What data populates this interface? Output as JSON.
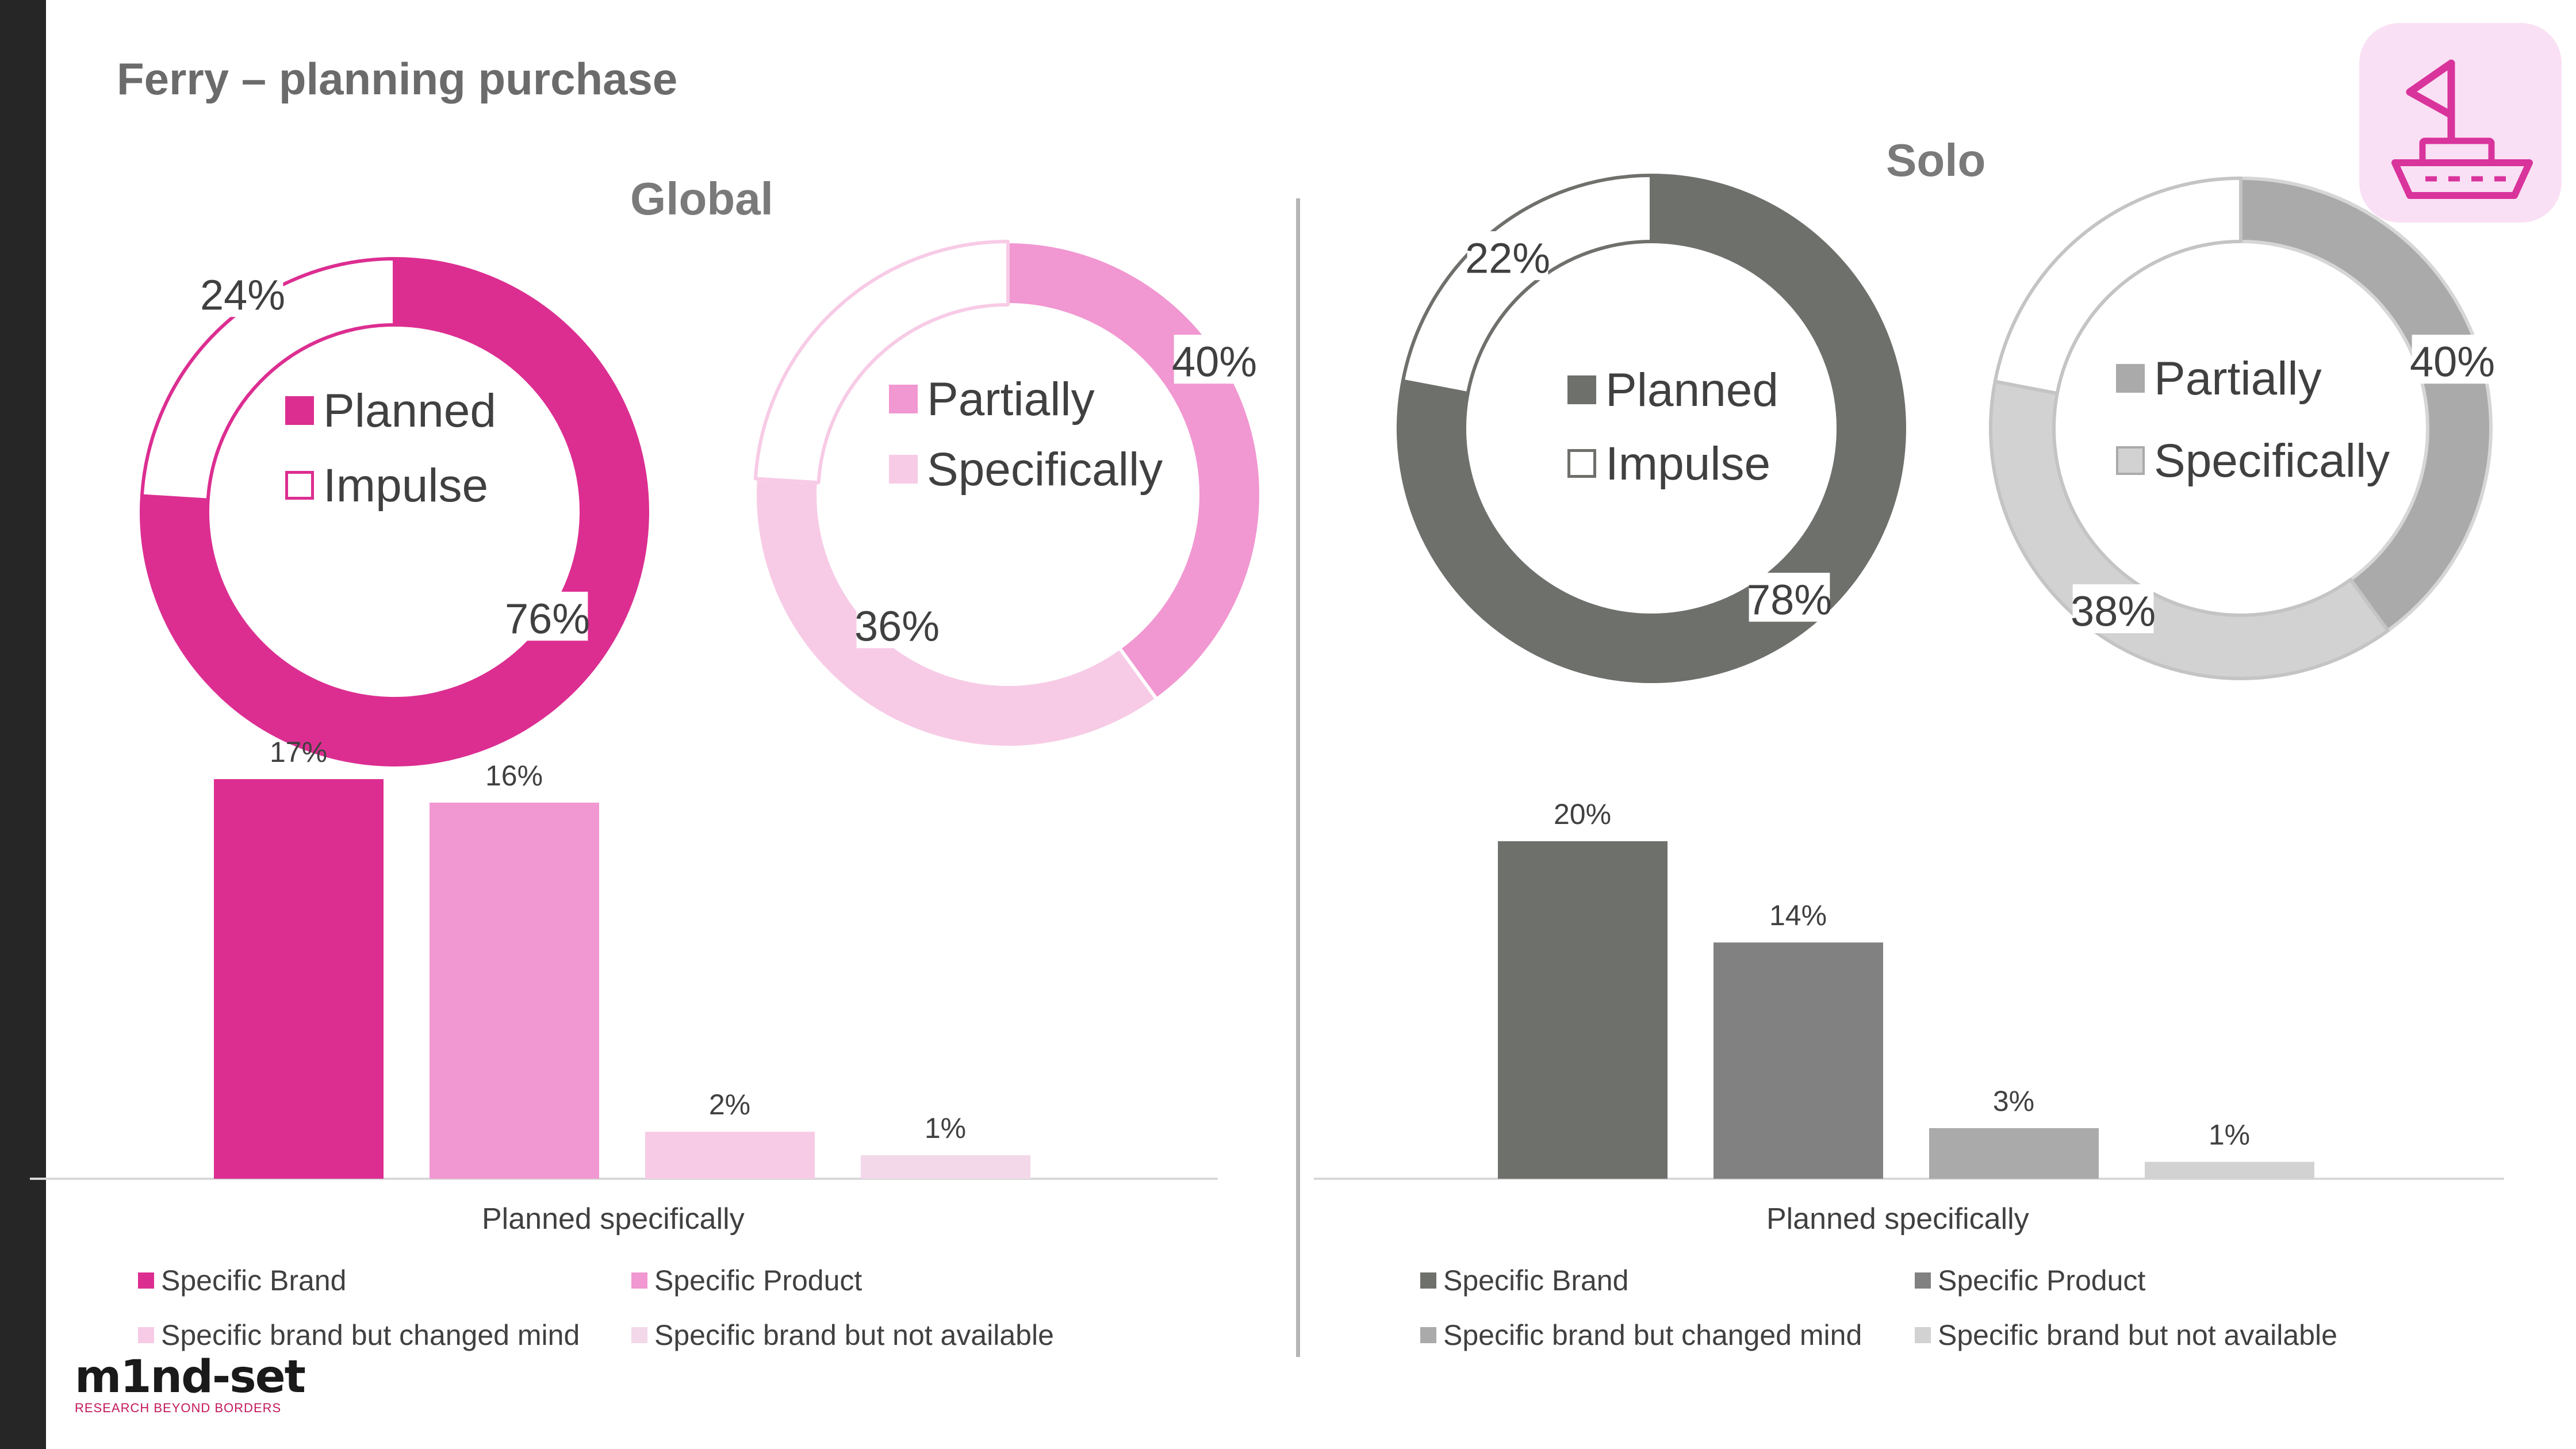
{
  "title": "Ferry – planning purchase",
  "colors": {
    "global_dark": "#dc2e91",
    "global_mid": "#f197d1",
    "global_light": "#f7cbe6",
    "global_lighter": "#f2d8e9",
    "solo_dark": "#6e706c",
    "solo_mid": "#818181",
    "solo_light": "#aaaaaa",
    "solo_lighter": "#d2d2d2",
    "icon_pink": "#d9339c"
  },
  "logo": {
    "word": "m1nd-set",
    "tagline": "RESEARCH BEYOND BORDERS"
  },
  "icons": {
    "ferry": "ferry-boat-icon"
  },
  "chart_data": [
    {
      "id": "global_planned",
      "panel": "Global",
      "type": "pie",
      "title": "Global",
      "labels": [
        "Planned",
        "Impulse"
      ],
      "values": [
        76,
        24
      ],
      "value_labels": [
        "76%",
        "24%"
      ]
    },
    {
      "id": "global_specific",
      "panel": "Global",
      "type": "pie",
      "labels": [
        "Partially",
        "Specifically"
      ],
      "values": [
        40,
        36
      ],
      "value_labels": [
        "40%",
        "36%"
      ],
      "remainder": 24
    },
    {
      "id": "global_bars",
      "panel": "Global",
      "type": "bar",
      "categories": [
        "Planned specifically"
      ],
      "xlabel": "Planned specifically",
      "ylim": [
        0,
        17
      ],
      "series": [
        {
          "name": "Specific Brand",
          "values": [
            17
          ],
          "label": "17%"
        },
        {
          "name": "Specific Product",
          "values": [
            16
          ],
          "label": "16%"
        },
        {
          "name": "Specific brand but changed mind",
          "values": [
            2
          ],
          "label": "2%"
        },
        {
          "name": "Specific brand but not available",
          "values": [
            1
          ],
          "label": "1%"
        }
      ]
    },
    {
      "id": "solo_planned",
      "panel": "Solo",
      "type": "pie",
      "title": "Solo",
      "labels": [
        "Planned",
        "Impulse"
      ],
      "values": [
        78,
        22
      ],
      "value_labels": [
        "78%",
        "22%"
      ]
    },
    {
      "id": "solo_specific",
      "panel": "Solo",
      "type": "pie",
      "labels": [
        "Partially",
        "Specifically"
      ],
      "values": [
        40,
        38
      ],
      "value_labels": [
        "40%",
        "38%"
      ],
      "remainder": 22
    },
    {
      "id": "solo_bars",
      "panel": "Solo",
      "type": "bar",
      "categories": [
        "Planned specifically"
      ],
      "xlabel": "Planned specifically",
      "ylim": [
        0,
        20
      ],
      "series": [
        {
          "name": "Specific Brand",
          "values": [
            20
          ],
          "label": "20%"
        },
        {
          "name": "Specific Product",
          "values": [
            14
          ],
          "label": "14%"
        },
        {
          "name": "Specific brand but changed mind",
          "values": [
            3
          ],
          "label": "3%"
        },
        {
          "name": "Specific brand but not available",
          "values": [
            1
          ],
          "label": "1%"
        }
      ]
    }
  ]
}
